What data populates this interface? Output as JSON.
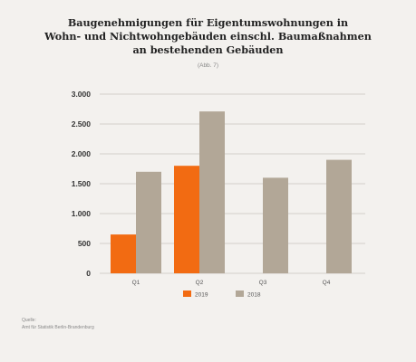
{
  "chart_data": {
    "type": "bar",
    "title_lines": [
      "Baugenehmigungen für Eigentumswohnungen in",
      "Wohn- und Nichtwohngebäuden einschl. Baumaßnahmen",
      "an bestehenden Gebäuden"
    ],
    "subtitle": "(Abb. 7)",
    "categories": [
      "Q1",
      "Q2",
      "Q3",
      "Q4"
    ],
    "series": [
      {
        "name": "2019",
        "color": "#f26b12",
        "values": [
          650,
          1800,
          null,
          null
        ]
      },
      {
        "name": "2018",
        "color": "#b2a797",
        "values": [
          1700,
          2710,
          1600,
          1900
        ]
      }
    ],
    "yticks": [
      0,
      500,
      1000,
      1500,
      2000,
      2500,
      3000
    ],
    "ytick_labels": [
      "0",
      "500",
      "1.000",
      "1.500",
      "2.000",
      "2.500",
      "3.000"
    ],
    "ylim": [
      0,
      3000
    ],
    "xlabel": "",
    "ylabel": "",
    "grid": true,
    "legend_position": "bottom-center",
    "source_lines": [
      "Quelle:",
      "Amt für Statistik Berlin-Brandenburg"
    ]
  }
}
